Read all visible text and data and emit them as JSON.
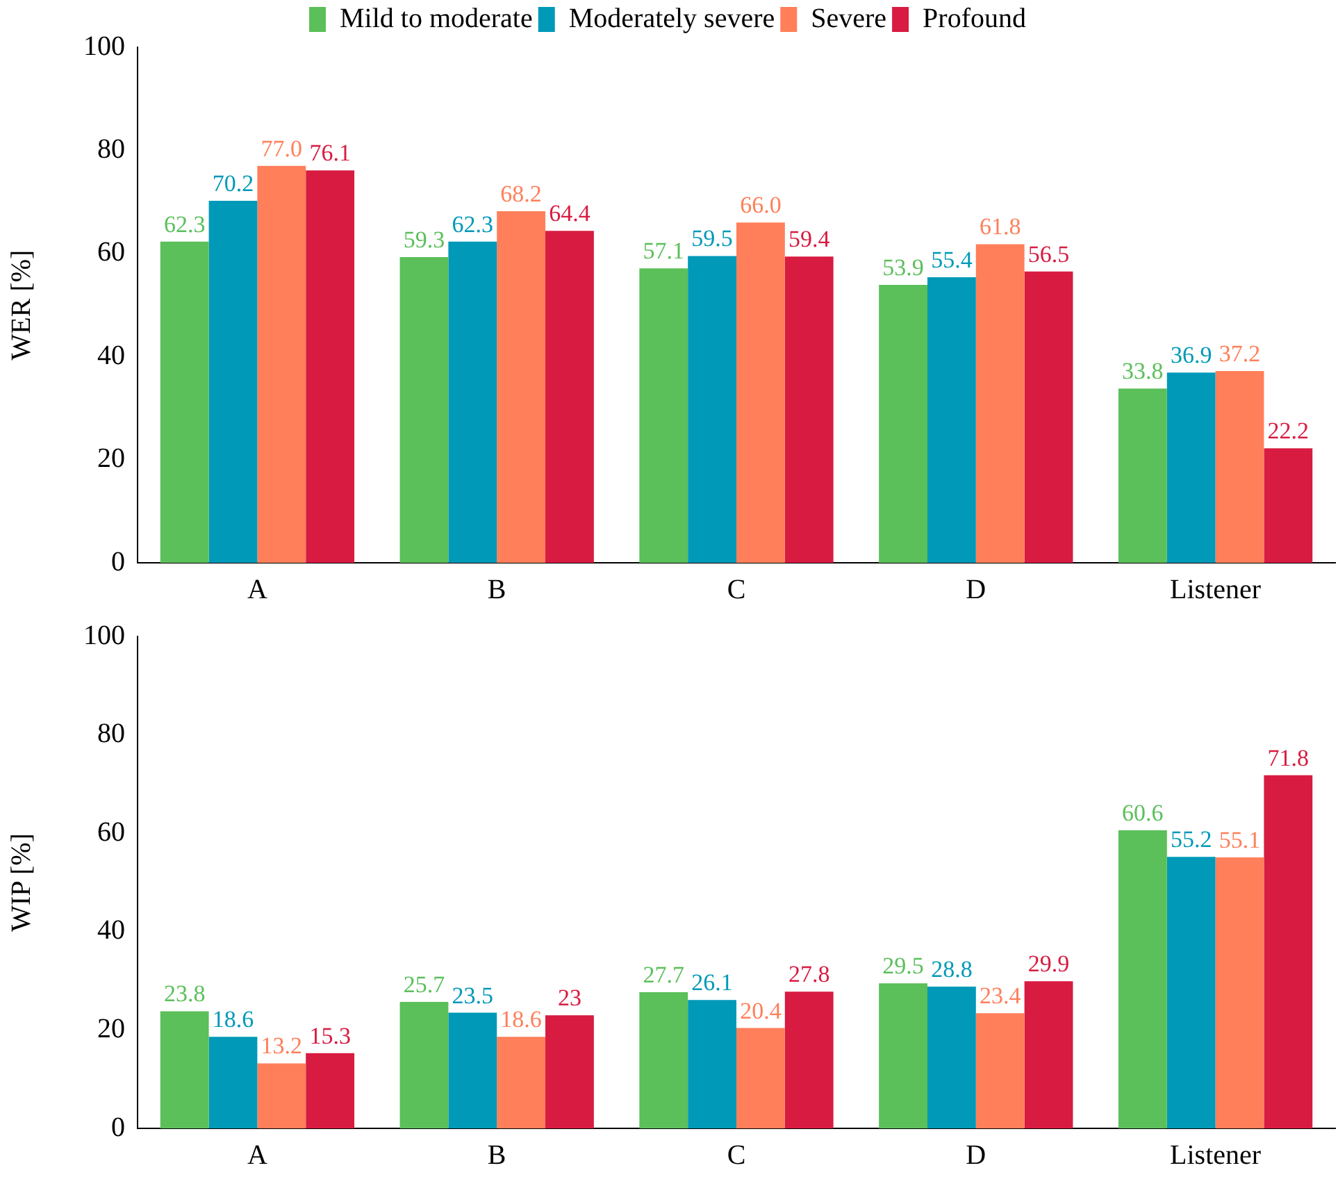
{
  "chart_data": [
    {
      "type": "bar",
      "ylabel": "WER [%]",
      "categories": [
        "A",
        "B",
        "C",
        "D",
        "Listener"
      ],
      "ylim": [
        0,
        100
      ],
      "yticks": [
        0,
        20,
        40,
        60,
        80,
        100
      ],
      "grid": false,
      "legend": "top",
      "series": [
        {
          "name": "Mild to moderate",
          "color": "#5bbf5a",
          "values": [
            62.3,
            59.3,
            57.1,
            53.9,
            33.8
          ],
          "value_labels": [
            "62.3",
            "59.3",
            "57.1",
            "53.9",
            "33.8"
          ]
        },
        {
          "name": "Moderately severe",
          "color": "#0099b8",
          "values": [
            70.2,
            62.3,
            59.5,
            55.4,
            36.9
          ],
          "value_labels": [
            "70.2",
            "62.3",
            "59.5",
            "55.4",
            "36.9"
          ]
        },
        {
          "name": "Severe",
          "color": "#ff7f5a",
          "values": [
            77.0,
            68.2,
            66.0,
            61.8,
            37.2
          ],
          "value_labels": [
            "77.0",
            "68.2",
            "66.0",
            "61.8",
            "37.2"
          ]
        },
        {
          "name": "Profound",
          "color": "#d81b41",
          "values": [
            76.1,
            64.4,
            59.4,
            56.5,
            22.2
          ],
          "value_labels": [
            "76.1",
            "64.4",
            "59.4",
            "56.5",
            "22.2"
          ]
        }
      ]
    },
    {
      "type": "bar",
      "ylabel": "WIP [%]",
      "categories": [
        "A",
        "B",
        "C",
        "D",
        "Listener"
      ],
      "ylim": [
        0,
        100
      ],
      "yticks": [
        0,
        20,
        40,
        60,
        80,
        100
      ],
      "grid": false,
      "legend": false,
      "series": [
        {
          "color": "#5bbf5a",
          "values": [
            23.8,
            25.7,
            27.7,
            29.5,
            60.6
          ],
          "value_labels": [
            "23.8",
            "25.7",
            "27.7",
            "29.5",
            "60.6"
          ]
        },
        {
          "color": "#0099b8",
          "values": [
            18.6,
            23.5,
            26.1,
            28.8,
            55.2
          ],
          "value_labels": [
            "18.6",
            "23.5",
            "26.1",
            "28.8",
            "55.2"
          ]
        },
        {
          "color": "#ff7f5a",
          "values": [
            13.2,
            18.6,
            20.4,
            23.4,
            55.1
          ],
          "value_labels": [
            "13.2",
            "18.6",
            "20.4",
            "23.4",
            "55.1"
          ]
        },
        {
          "color": "#d81b41",
          "values": [
            15.3,
            23,
            27.8,
            29.9,
            71.8
          ],
          "value_labels": [
            "15.3",
            "23",
            "27.8",
            "29.9",
            "71.8"
          ]
        }
      ]
    }
  ]
}
